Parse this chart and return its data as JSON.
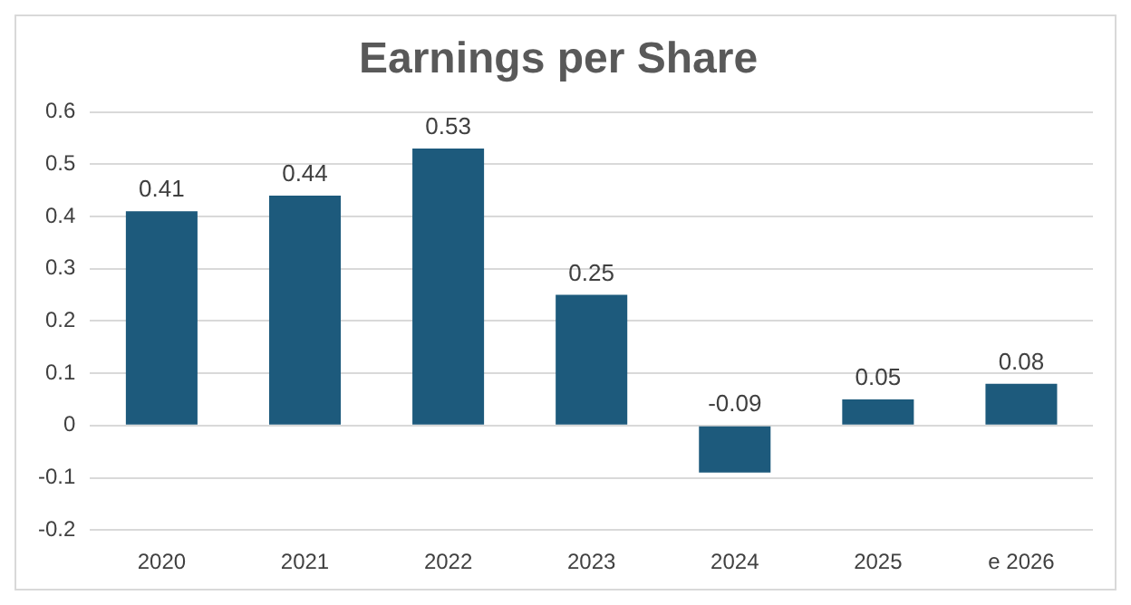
{
  "chart_data": {
    "type": "bar",
    "title": "Earnings per Share",
    "categories": [
      "2020",
      "2021",
      "2022",
      "2023",
      "2024",
      "2025",
      "e 2026"
    ],
    "values": [
      0.41,
      0.44,
      0.53,
      0.25,
      -0.09,
      0.05,
      0.08
    ],
    "color": "#1d5a7c",
    "ylim": [
      -0.2,
      0.6
    ],
    "yticks": [
      -0.2,
      -0.1,
      0,
      0.1,
      0.2,
      0.3,
      0.4,
      0.5,
      0.6
    ],
    "grid": "y",
    "data_labels": true,
    "legend": false
  }
}
